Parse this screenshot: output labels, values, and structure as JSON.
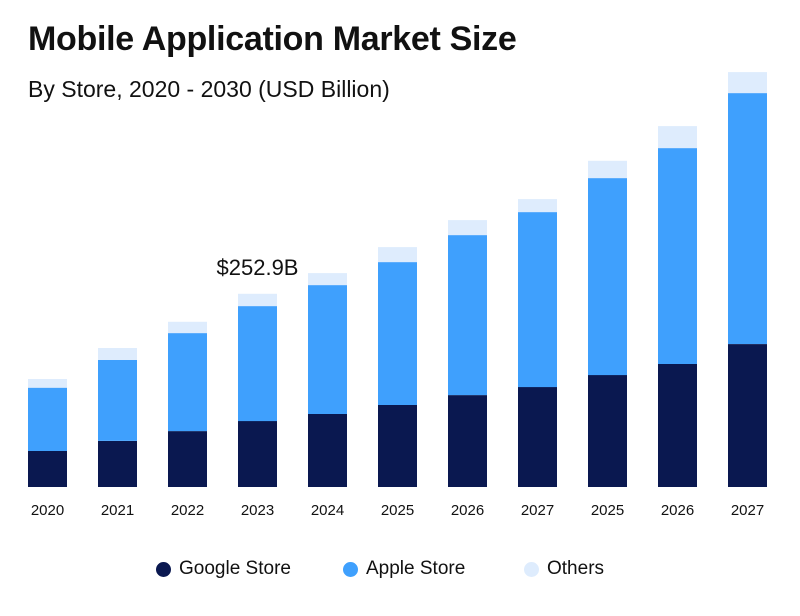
{
  "chart_data": {
    "type": "bar",
    "stacked": true,
    "title": "Mobile Application Market Size",
    "subtitle": "By Store, 2020 - 2030 (USD Billion)",
    "categories": [
      "2020",
      "2021",
      "2022",
      "2023",
      "2024",
      "2025",
      "2026",
      "2027",
      "2025",
      "2026",
      "2027"
    ],
    "series": [
      {
        "name": "Google Store",
        "color": "#0a1850",
        "values": [
          47.1,
          60.2,
          73.2,
          86.3,
          95.5,
          107.3,
          120.3,
          130.8,
          146.5,
          160.9,
          187.0
        ]
      },
      {
        "name": "Apple Store",
        "color": "#3fa0fd",
        "values": [
          82.8,
          105.9,
          128.2,
          150.4,
          168.7,
          187.0,
          209.3,
          228.9,
          257.7,
          282.5,
          328.3
        ]
      },
      {
        "name": "Others",
        "color": "#deecfd",
        "values": [
          11.4,
          15.7,
          14.8,
          16.1,
          15.7,
          19.6,
          19.6,
          17.0,
          22.6,
          28.8,
          27.5
        ]
      }
    ],
    "annotations": [
      {
        "category_index": 3,
        "text": "$252.9B"
      }
    ],
    "ylim": [
      0,
      550
    ],
    "y_axis_visible": false,
    "grid": false,
    "legend_position": "bottom"
  }
}
